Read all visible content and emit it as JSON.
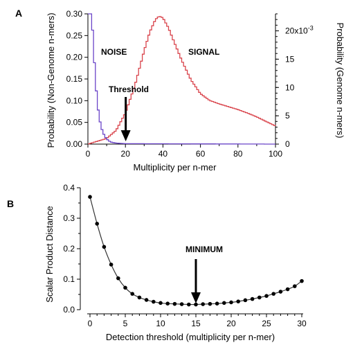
{
  "colors": {
    "noise": "#6a44c8",
    "signal": "#d9434b",
    "curve_b": "#333333",
    "axis": "#000000"
  },
  "chart_data": [
    {
      "panel": "A",
      "type": "line",
      "step": true,
      "xlabel": "Multiplicity per n-mer",
      "ylabel_left": "Probability (Non-Genome n-mers)",
      "ylabel_right": "Probability (Genome n-mers)",
      "xlim": [
        0,
        100
      ],
      "ylim_left": [
        0,
        0.3
      ],
      "ylim_right": [
        0,
        0.023
      ],
      "xticks": [
        "0",
        "20",
        "40",
        "60",
        "80",
        "100"
      ],
      "yticks_left": [
        "0.00",
        "0.05",
        "0.10",
        "0.15",
        "0.20",
        "0.25",
        "0.30"
      ],
      "yticks_right": [
        "0",
        "5",
        "10",
        "15",
        "20x10-3"
      ],
      "grid": false,
      "series": [
        {
          "name": "NOISE",
          "axis": "left",
          "x": [
            0,
            1,
            2,
            3,
            4,
            5,
            6,
            7,
            8,
            9,
            10,
            11,
            12,
            14,
            16,
            20,
            100
          ],
          "y": [
            0.3,
            0.3,
            0.3,
            0.225,
            0.15,
            0.095,
            0.062,
            0.04,
            0.027,
            0.018,
            0.012,
            0.008,
            0.005,
            0.003,
            0.002,
            0.001,
            0.0
          ]
        },
        {
          "name": "SIGNAL",
          "axis": "right",
          "x": [
            0,
            5,
            10,
            15,
            20,
            25,
            30,
            33,
            36,
            38,
            40,
            43,
            46,
            50,
            55,
            60,
            65,
            70,
            75,
            80,
            85,
            90,
            95,
            100
          ],
          "y": [
            0.0,
            0.0005,
            0.001,
            0.0024,
            0.0055,
            0.0103,
            0.0165,
            0.0198,
            0.022,
            0.0226,
            0.0223,
            0.0205,
            0.018,
            0.0148,
            0.0113,
            0.0089,
            0.0077,
            0.0071,
            0.0066,
            0.0061,
            0.0055,
            0.0048,
            0.004,
            0.0032
          ]
        }
      ],
      "annotations": {
        "noise_label": "NOISE",
        "signal_label": "SIGNAL",
        "threshold_label": "Threshold",
        "threshold_x": 15
      }
    },
    {
      "panel": "B",
      "type": "line",
      "markers": true,
      "xlabel": "Detection threshold (multiplicity per n-mer)",
      "ylabel": "Scalar Product Distance",
      "xlim": [
        0,
        30
      ],
      "ylim": [
        0,
        0.4
      ],
      "xticks": [
        "0",
        "5",
        "10",
        "15",
        "20",
        "25",
        "30"
      ],
      "yticks": [
        "0.0",
        "0.1",
        "0.2",
        "0.3",
        "0.4"
      ],
      "grid": false,
      "x": [
        0,
        1,
        2,
        3,
        4,
        5,
        6,
        7,
        8,
        9,
        10,
        11,
        12,
        13,
        14,
        15,
        16,
        17,
        18,
        19,
        20,
        21,
        22,
        23,
        24,
        25,
        26,
        27,
        28,
        29,
        30
      ],
      "y": [
        0.37,
        0.282,
        0.206,
        0.148,
        0.103,
        0.072,
        0.052,
        0.04,
        0.032,
        0.026,
        0.022,
        0.02,
        0.019,
        0.018,
        0.017,
        0.017,
        0.018,
        0.019,
        0.02,
        0.022,
        0.024,
        0.027,
        0.031,
        0.035,
        0.04,
        0.045,
        0.052,
        0.059,
        0.067,
        0.077,
        0.094
      ],
      "annotations": {
        "minimum_label": "MINIMUM",
        "minimum_x": 15
      }
    }
  ]
}
